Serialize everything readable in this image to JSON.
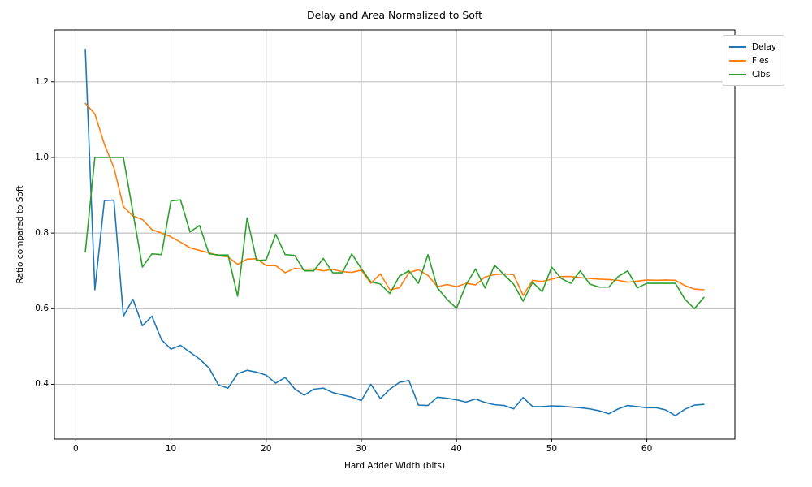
{
  "chart_data": {
    "type": "line",
    "title": "Delay and Area Normalized to Soft",
    "xlabel": "Hard Adder Width (bits)",
    "ylabel": "Ratio compared to Soft",
    "xlim": [
      -2.25,
      69.25
    ],
    "ylim": [
      0.255,
      1.337
    ],
    "xticks": [
      0,
      10,
      20,
      30,
      40,
      50,
      60
    ],
    "yticks": [
      0.4,
      0.6,
      0.8,
      1.0,
      1.2
    ],
    "grid": true,
    "grid_color": "#b0b0b0",
    "legend_position": "upper right, overlapping top-right corner of axes",
    "x": [
      1,
      2,
      3,
      4,
      5,
      6,
      7,
      8,
      9,
      10,
      11,
      12,
      13,
      14,
      15,
      16,
      17,
      18,
      19,
      20,
      21,
      22,
      23,
      24,
      25,
      26,
      27,
      28,
      29,
      30,
      31,
      32,
      33,
      34,
      35,
      36,
      37,
      38,
      39,
      40,
      41,
      42,
      43,
      44,
      45,
      46,
      47,
      48,
      49,
      50,
      51,
      52,
      53,
      54,
      55,
      56,
      57,
      58,
      59,
      60,
      61,
      62,
      63,
      64,
      65,
      66
    ],
    "series": [
      {
        "name": "Delay",
        "color": "#1f77b4",
        "values": [
          1.286,
          0.65,
          0.886,
          0.887,
          0.58,
          0.625,
          0.555,
          0.58,
          0.518,
          0.493,
          0.503,
          0.485,
          0.467,
          0.443,
          0.398,
          0.39,
          0.428,
          0.437,
          0.432,
          0.424,
          0.403,
          0.418,
          0.388,
          0.371,
          0.387,
          0.39,
          0.378,
          0.372,
          0.366,
          0.357,
          0.4,
          0.362,
          0.387,
          0.405,
          0.41,
          0.345,
          0.344,
          0.366,
          0.363,
          0.359,
          0.353,
          0.361,
          0.352,
          0.346,
          0.344,
          0.335,
          0.365,
          0.341,
          0.341,
          0.343,
          0.342,
          0.34,
          0.338,
          0.335,
          0.33,
          0.322,
          0.335,
          0.344,
          0.341,
          0.338,
          0.338,
          0.332,
          0.317,
          0.334,
          0.345,
          0.347
        ]
      },
      {
        "name": "Fles",
        "color": "#ff7f0e",
        "values": [
          1.143,
          1.115,
          1.035,
          0.973,
          0.87,
          0.845,
          0.836,
          0.809,
          0.8,
          0.79,
          0.776,
          0.761,
          0.754,
          0.748,
          0.74,
          0.737,
          0.717,
          0.731,
          0.732,
          0.714,
          0.714,
          0.695,
          0.707,
          0.704,
          0.705,
          0.7,
          0.704,
          0.698,
          0.696,
          0.702,
          0.667,
          0.692,
          0.65,
          0.655,
          0.695,
          0.703,
          0.688,
          0.658,
          0.664,
          0.658,
          0.667,
          0.663,
          0.684,
          0.69,
          0.692,
          0.69,
          0.635,
          0.675,
          0.672,
          0.678,
          0.685,
          0.685,
          0.682,
          0.68,
          0.678,
          0.677,
          0.675,
          0.67,
          0.673,
          0.676,
          0.675,
          0.676,
          0.675,
          0.661,
          0.652,
          0.65
        ]
      },
      {
        "name": "Clbs",
        "color": "#2ca02c",
        "values": [
          0.75,
          1.0,
          1.0,
          1.0,
          1.0,
          0.855,
          0.71,
          0.745,
          0.743,
          0.885,
          0.888,
          0.803,
          0.82,
          0.745,
          0.742,
          0.742,
          0.633,
          0.84,
          0.727,
          0.729,
          0.797,
          0.743,
          0.741,
          0.7,
          0.7,
          0.733,
          0.695,
          0.695,
          0.745,
          0.706,
          0.671,
          0.665,
          0.64,
          0.686,
          0.7,
          0.667,
          0.743,
          0.655,
          0.625,
          0.601,
          0.663,
          0.705,
          0.655,
          0.715,
          0.69,
          0.665,
          0.62,
          0.67,
          0.645,
          0.71,
          0.68,
          0.667,
          0.7,
          0.665,
          0.657,
          0.657,
          0.685,
          0.7,
          0.655,
          0.667,
          0.667,
          0.667,
          0.667,
          0.625,
          0.6,
          0.63
        ]
      }
    ]
  }
}
